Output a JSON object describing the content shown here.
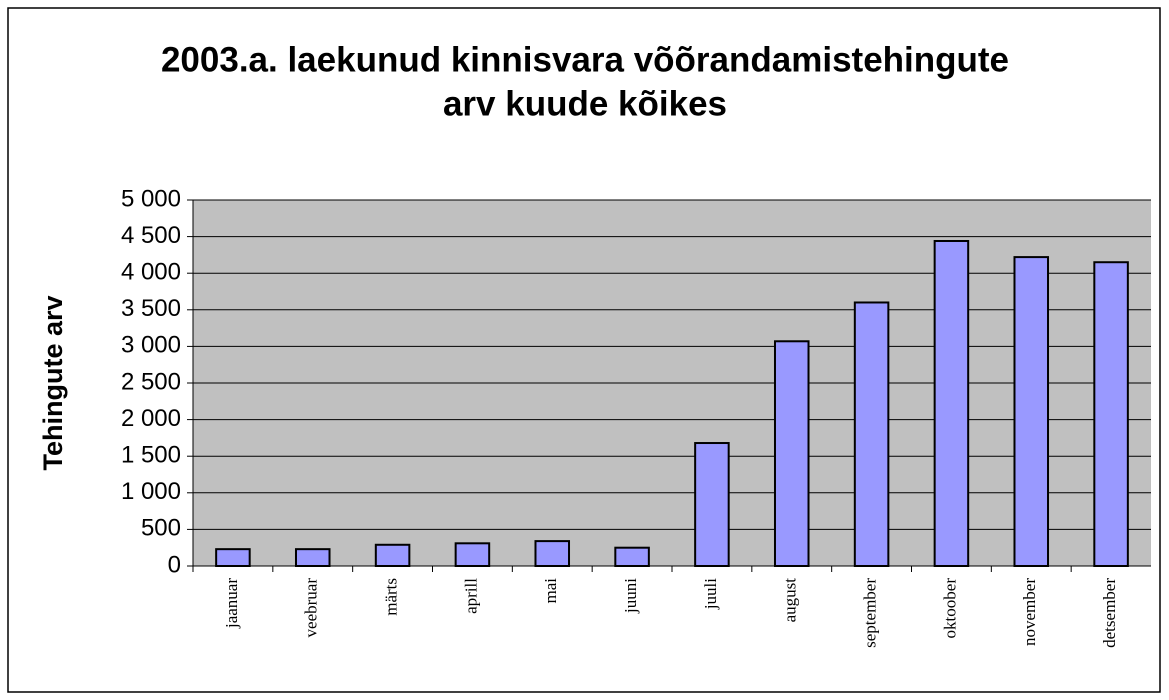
{
  "chart_data": {
    "type": "bar",
    "title": [
      "2003.a. laekunud kinnisvara võõrandamistehingute",
      "arv kuude kõikes"
    ],
    "y_label": "Tehingute arv",
    "categories": [
      "jaanuar",
      "veebruar",
      "märts",
      "aprill",
      "mai",
      "juuni",
      "juuli",
      "august",
      "september",
      "oktoober",
      "november",
      "detsember"
    ],
    "values": [
      230,
      230,
      290,
      310,
      340,
      250,
      1680,
      3070,
      3600,
      4440,
      4220,
      4150
    ],
    "color": "#9999ff",
    "ylim": [
      0,
      5000
    ],
    "yticks": [
      0,
      500,
      {
        "value": 1000,
        "label": "1 000"
      },
      {
        "value": 1500,
        "label": "1 500"
      },
      {
        "value": 2000,
        "label": "2 000"
      },
      {
        "value": 2500,
        "label": "2 500"
      },
      {
        "value": 3000,
        "label": "3 000"
      },
      {
        "value": 3500,
        "label": "3 500"
      },
      {
        "value": 4000,
        "label": "4 000"
      },
      {
        "value": 4500,
        "label": "4 500"
      },
      {
        "value": 5000,
        "label": "5 000"
      }
    ],
    "grid": true
  }
}
